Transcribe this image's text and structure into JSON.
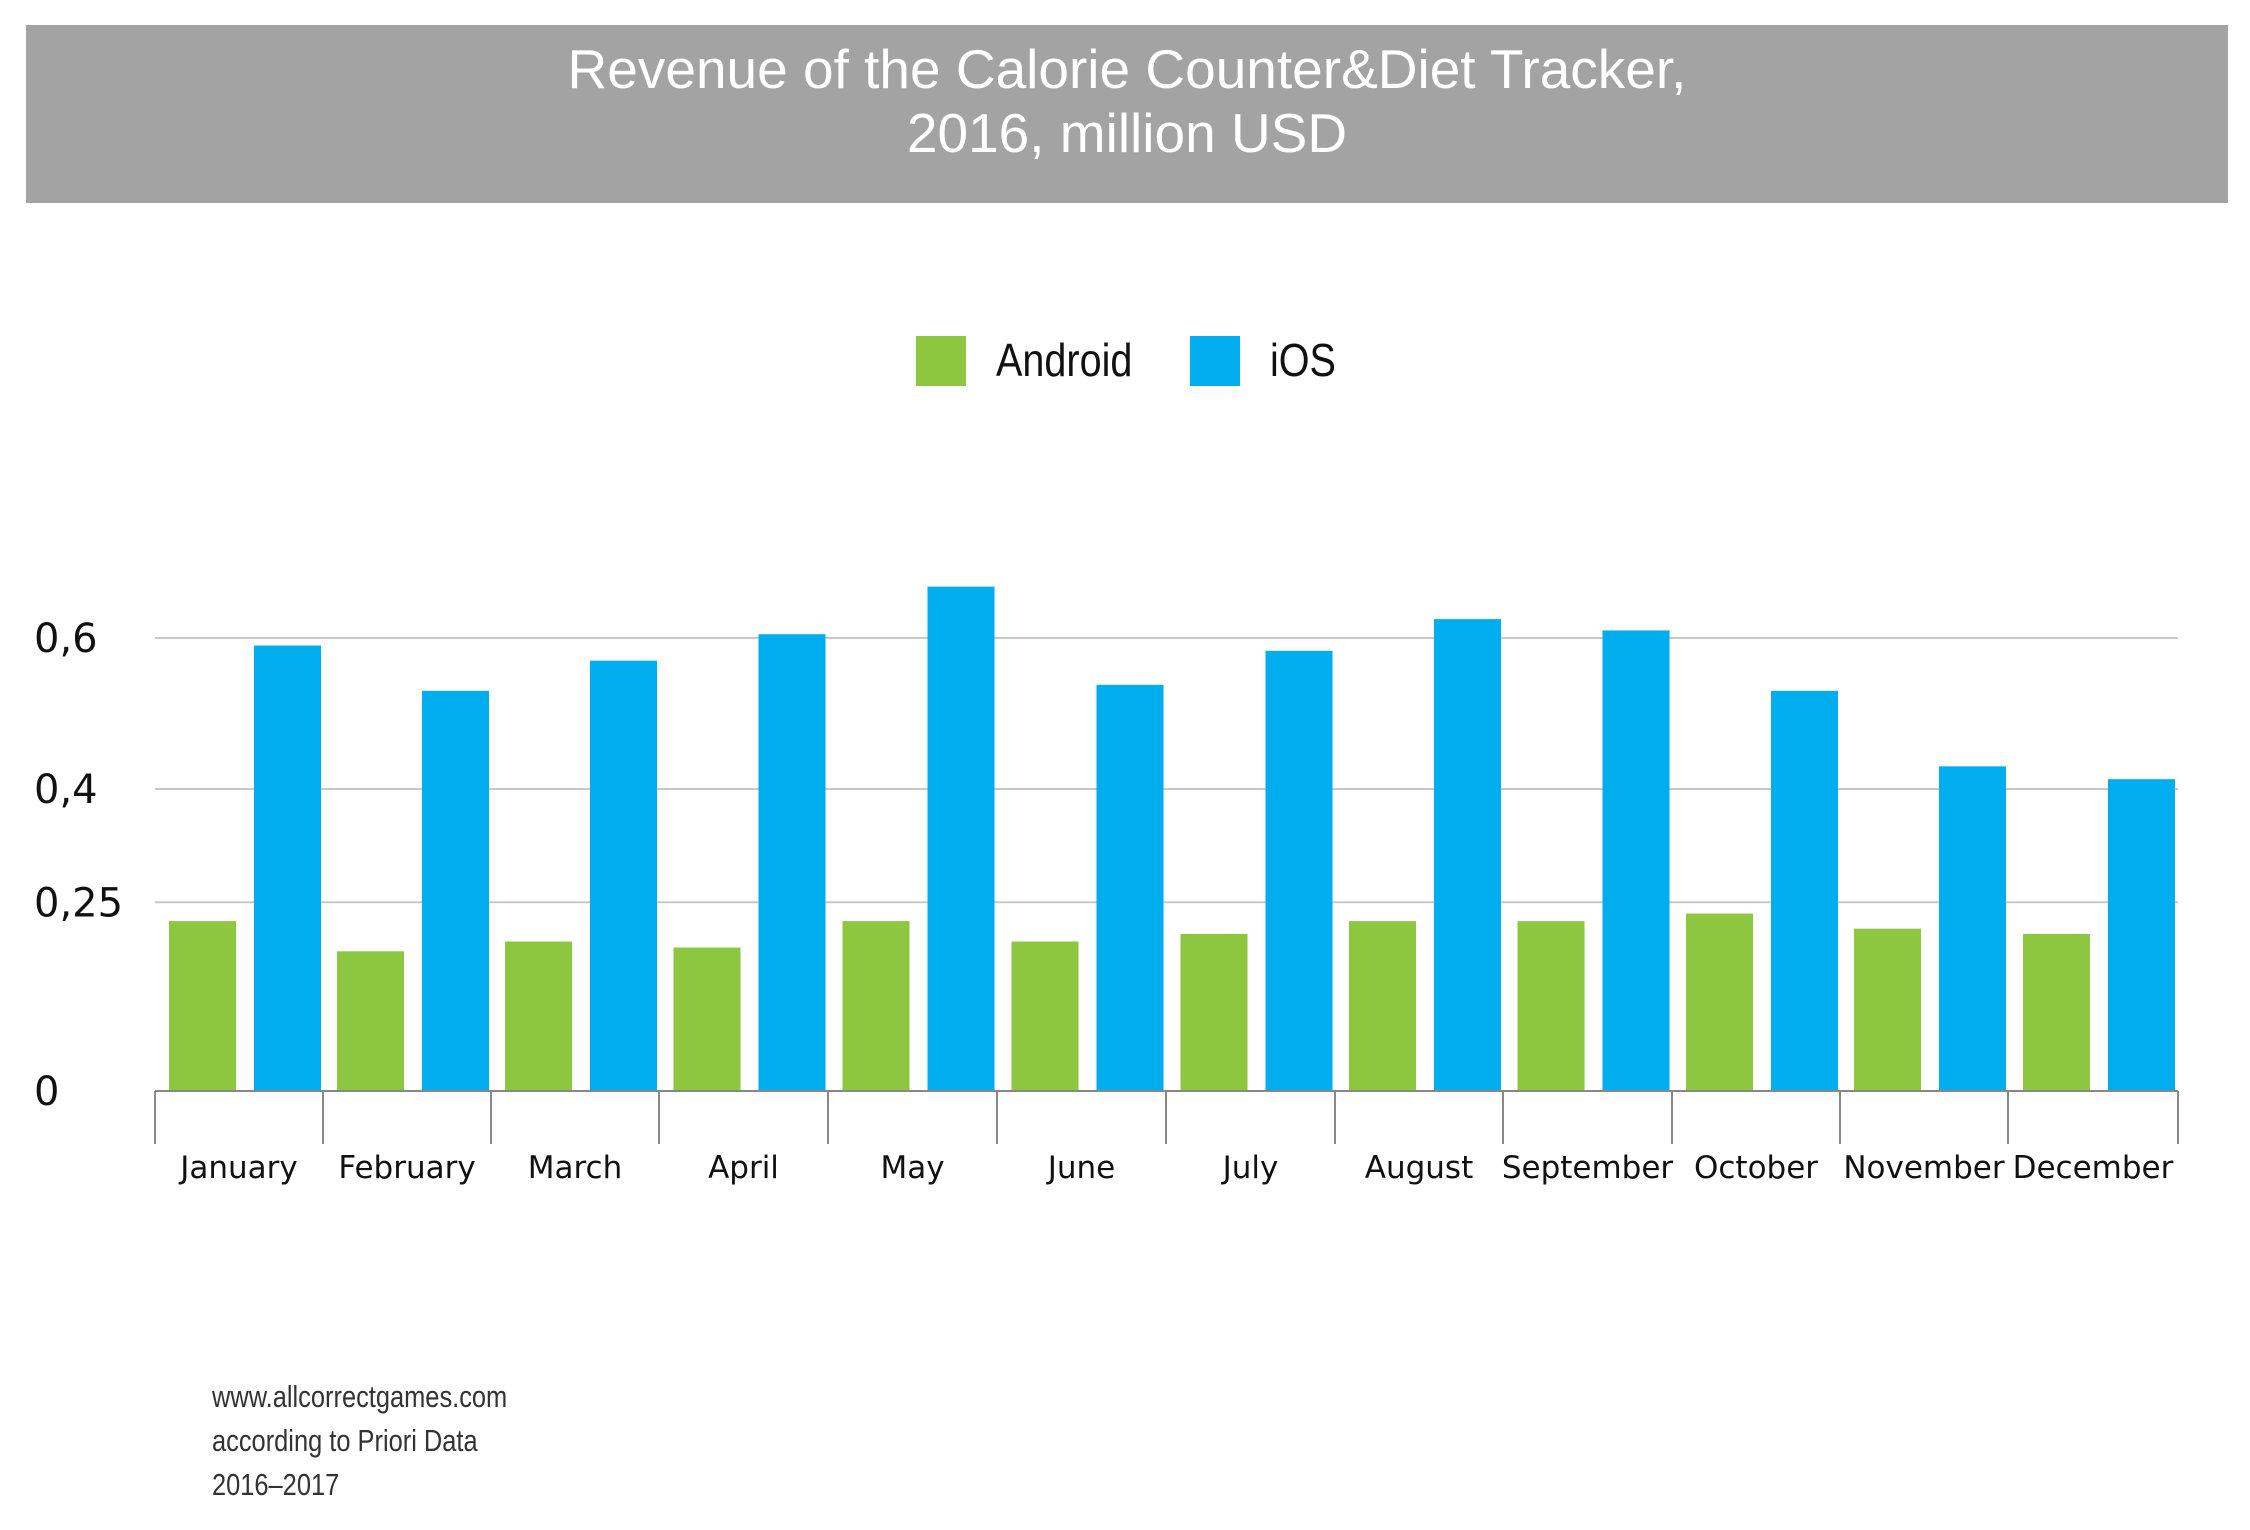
{
  "title": {
    "line1": "Revenue of the Calorie Counter&Diet Tracker,",
    "line2": "2016, million USD"
  },
  "colors": {
    "banner": "#a3a3a3",
    "android": "#8dc63f",
    "ios": "#00aeef",
    "grid": "#c8c8c8",
    "axis": "#888888"
  },
  "chart_data": {
    "type": "bar",
    "categories": [
      "January",
      "February",
      "March",
      "April",
      "May",
      "June",
      "July",
      "August",
      "September",
      "October",
      "November",
      "December"
    ],
    "series": [
      {
        "name": "Android",
        "values": [
          0.225,
          0.185,
          0.198,
          0.19,
          0.225,
          0.198,
          0.208,
          0.225,
          0.225,
          0.235,
          0.215,
          0.208
        ]
      },
      {
        "name": "iOS",
        "values": [
          0.59,
          0.53,
          0.57,
          0.605,
          0.668,
          0.538,
          0.583,
          0.625,
          0.61,
          0.53,
          0.43,
          0.413
        ]
      }
    ],
    "y_ticks": [
      {
        "value": 0,
        "label": "0"
      },
      {
        "value": 0.25,
        "label": "0,25"
      },
      {
        "value": 0.4,
        "label": "0,4"
      },
      {
        "value": 0.6,
        "label": "0,6"
      }
    ],
    "title": "Revenue of the Calorie Counter&Diet Tracker, 2016, million USD",
    "xlabel": "",
    "ylabel": "",
    "ylim": [
      0,
      0.7
    ],
    "grid": true,
    "legend_position": "top-center"
  },
  "footer": {
    "line1": "www.allcorrectgames.com",
    "line2": "according to Priori Data",
    "line3": "2016–2017"
  }
}
